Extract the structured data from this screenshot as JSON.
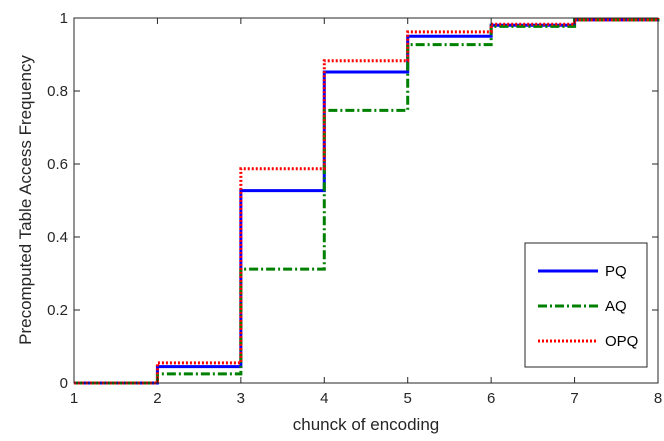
{
  "chart_data": {
    "type": "line",
    "step": "post",
    "xlabel": "chunck of encoding",
    "ylabel": "Precomputed Table Access Frequency",
    "xlim": [
      1,
      8
    ],
    "ylim": [
      0,
      1
    ],
    "xticks": [
      "1",
      "2",
      "3",
      "4",
      "5",
      "6",
      "7",
      "8"
    ],
    "yticks": [
      "0",
      "0.2",
      "0.4",
      "0.6",
      "0.8",
      "1"
    ],
    "grid": false,
    "legend_position": "bottom-right",
    "x": [
      1,
      2,
      3,
      4,
      5,
      6,
      7,
      8
    ],
    "series": [
      {
        "name": "PQ",
        "color": "#0000ff",
        "style": "solid",
        "values": [
          0,
          0.045,
          0.527,
          0.852,
          0.95,
          0.98,
          0.995,
          1.0
        ]
      },
      {
        "name": "AQ",
        "color": "#008000",
        "style": "dashdot",
        "values": [
          0,
          0.025,
          0.312,
          0.747,
          0.927,
          0.977,
          0.995,
          1.0
        ]
      },
      {
        "name": "OPQ",
        "color": "#ff0000",
        "style": "dotted",
        "values": [
          0,
          0.055,
          0.587,
          0.883,
          0.962,
          0.983,
          0.995,
          1.0
        ]
      }
    ]
  }
}
